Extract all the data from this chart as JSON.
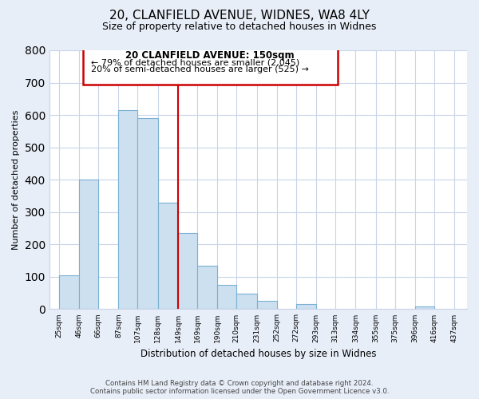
{
  "title1": "20, CLANFIELD AVENUE, WIDNES, WA8 4LY",
  "title2": "Size of property relative to detached houses in Widnes",
  "xlabel": "Distribution of detached houses by size in Widnes",
  "ylabel": "Number of detached properties",
  "bar_left_edges": [
    25,
    46,
    66,
    87,
    107,
    128,
    149,
    169,
    190,
    210,
    231,
    252,
    272,
    293,
    313,
    334,
    355,
    375,
    396,
    416
  ],
  "bar_heights": [
    105,
    400,
    0,
    615,
    590,
    330,
    235,
    135,
    75,
    48,
    25,
    0,
    15,
    0,
    0,
    0,
    0,
    0,
    8,
    0
  ],
  "bar_widths": [
    21,
    20,
    21,
    20,
    21,
    21,
    20,
    21,
    20,
    21,
    21,
    20,
    21,
    20,
    21,
    21,
    20,
    21,
    20,
    21
  ],
  "tick_labels": [
    "25sqm",
    "46sqm",
    "66sqm",
    "87sqm",
    "107sqm",
    "128sqm",
    "149sqm",
    "169sqm",
    "190sqm",
    "210sqm",
    "231sqm",
    "252sqm",
    "272sqm",
    "293sqm",
    "313sqm",
    "334sqm",
    "355sqm",
    "375sqm",
    "396sqm",
    "416sqm",
    "437sqm"
  ],
  "tick_positions": [
    25,
    46,
    66,
    87,
    107,
    128,
    149,
    169,
    190,
    210,
    231,
    252,
    272,
    293,
    313,
    334,
    355,
    375,
    396,
    416,
    437
  ],
  "bar_color": "#cce0f0",
  "bar_edge_color": "#7ab0d4",
  "vline_x": 149,
  "vline_color": "#cc0000",
  "annotation_line1": "20 CLANFIELD AVENUE: 150sqm",
  "annotation_line2": "← 79% of detached houses are smaller (2,045)",
  "annotation_line3": "20% of semi-detached houses are larger (525) →",
  "ylim": [
    0,
    800
  ],
  "yticks": [
    0,
    100,
    200,
    300,
    400,
    500,
    600,
    700,
    800
  ],
  "footer1": "Contains HM Land Registry data © Crown copyright and database right 2024.",
  "footer2": "Contains public sector information licensed under the Open Government Licence v3.0.",
  "bg_color": "#e8eef8",
  "plot_bg_color": "#ffffff",
  "grid_color": "#c8d4e8"
}
